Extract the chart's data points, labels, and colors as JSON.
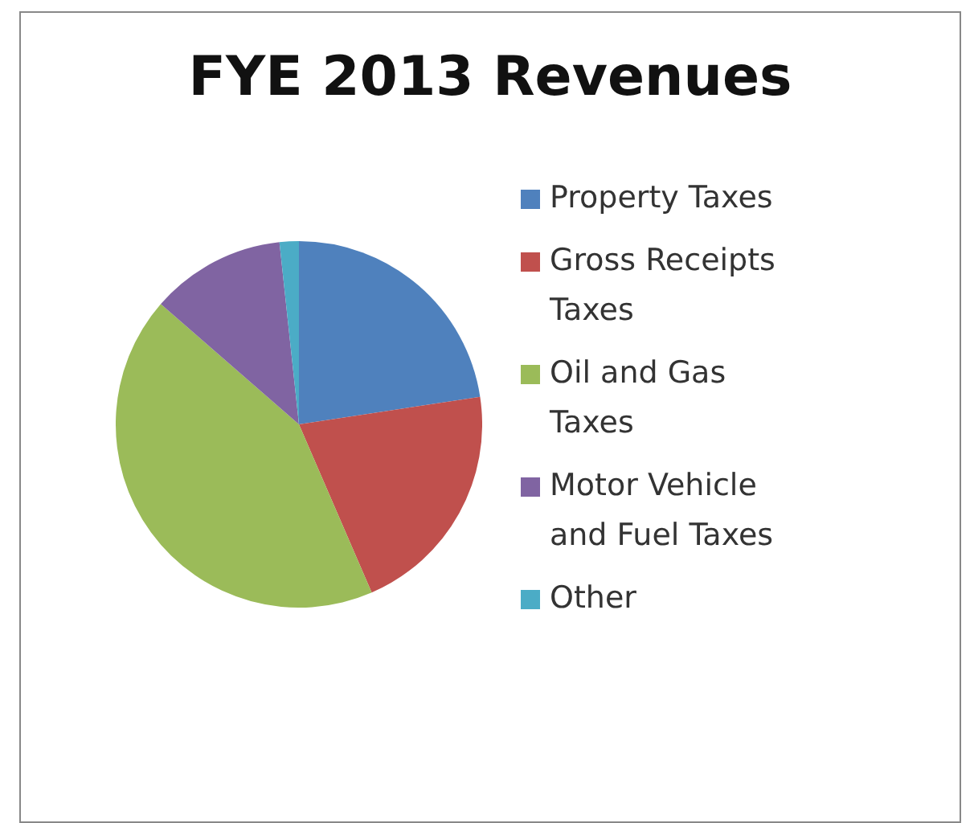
{
  "chart_data": {
    "type": "pie",
    "title": "FYE 2013 Revenues",
    "categories": [
      "Property Taxes",
      "Gross Receipts Taxes",
      "Oil and Gas Taxes",
      "Motor Vehicle and Fuel Taxes",
      "Other"
    ],
    "values": [
      22.6,
      20.9,
      42.9,
      11.9,
      1.7
    ],
    "colors": [
      "#4f81bd",
      "#c0504d",
      "#9bbb59",
      "#8064a2",
      "#4bacc6"
    ],
    "legend": "right"
  }
}
